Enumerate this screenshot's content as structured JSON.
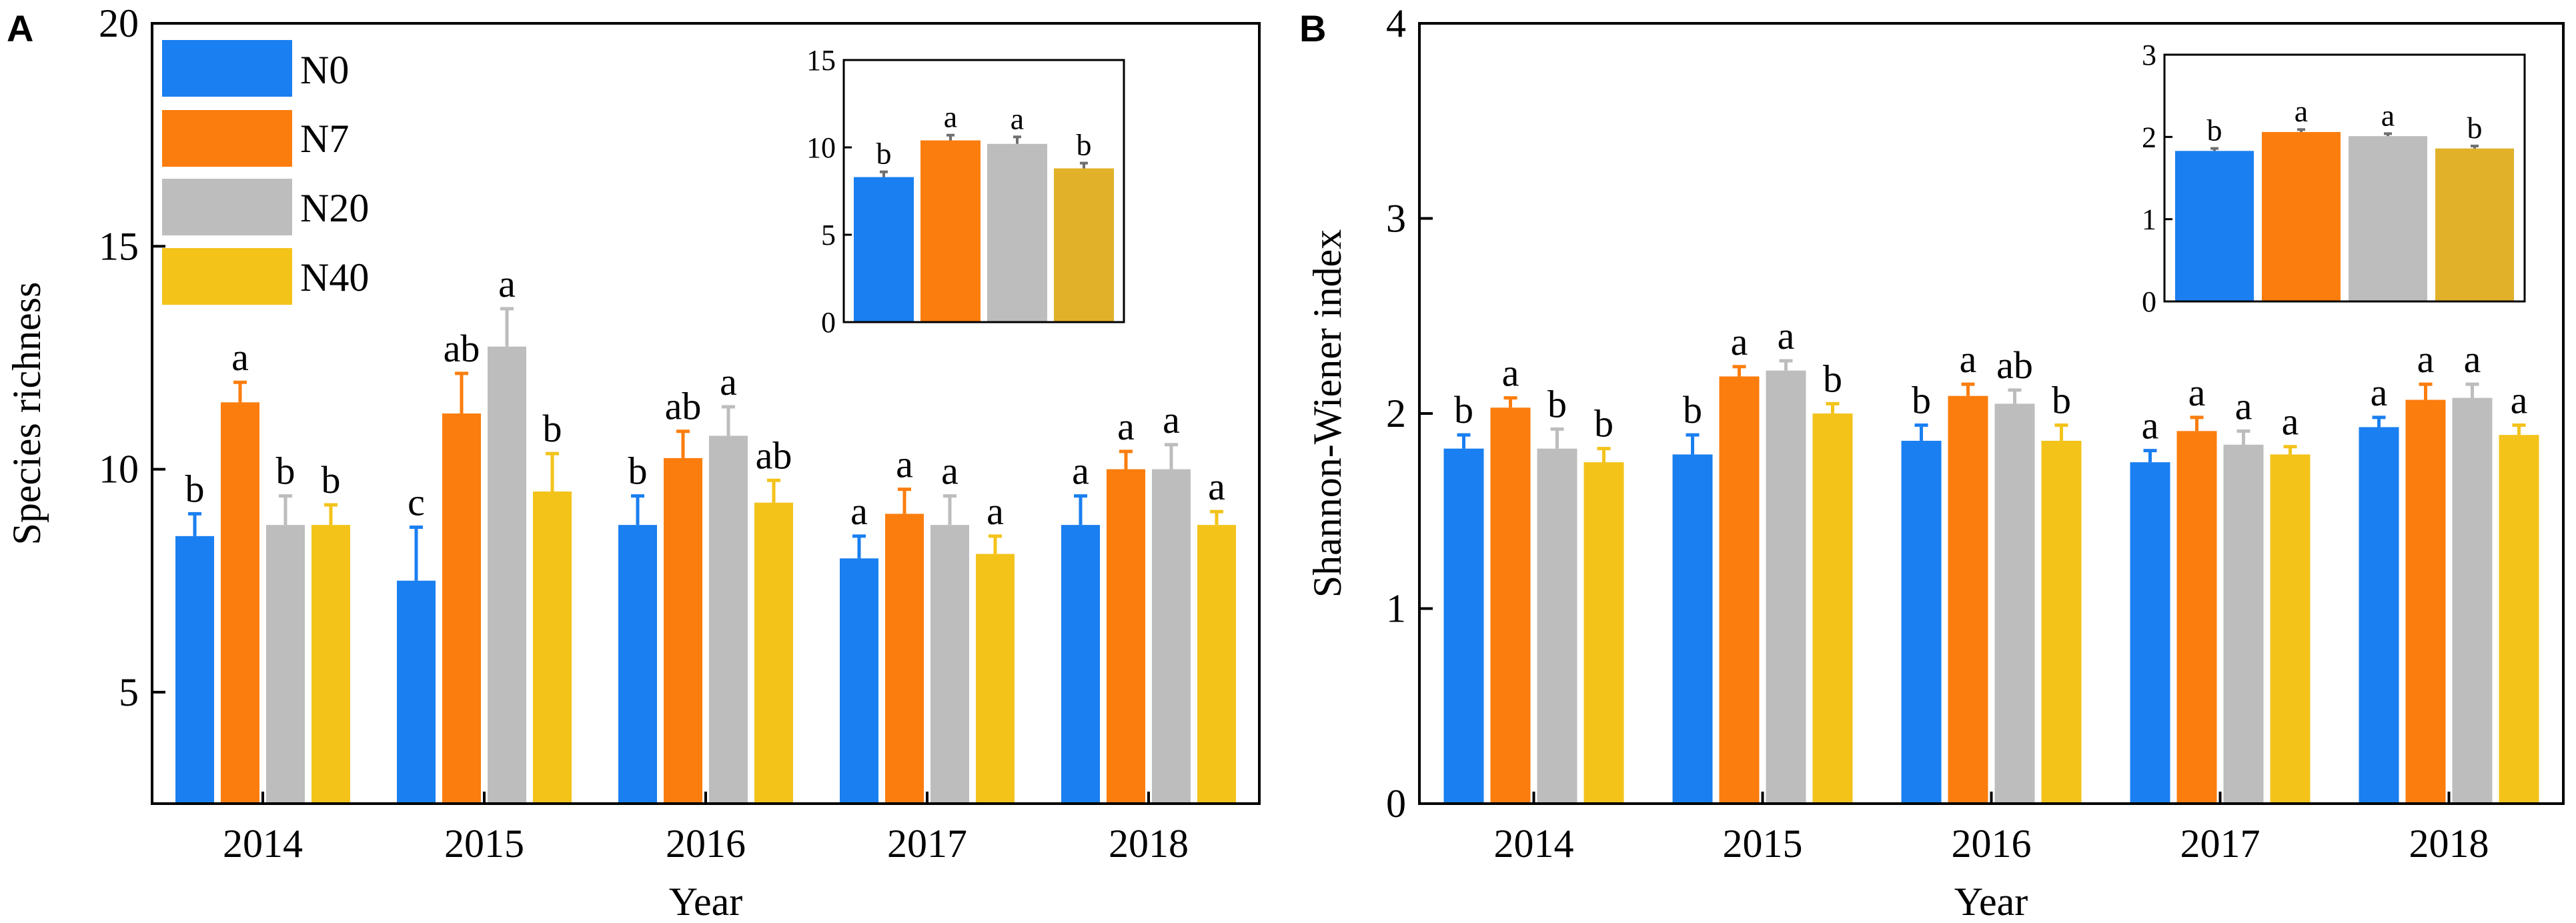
{
  "series_names": [
    "N0",
    "N7",
    "N20",
    "N40"
  ],
  "colors": {
    "N0": "#1a7ff0",
    "N7": "#fb7d0e",
    "N20": "#bdbdbd",
    "N40": "#f3c31a",
    "N40_inset": "#e2b12a",
    "axis": "#000000",
    "error": "#6f6f6f"
  },
  "chart_data": [
    {
      "panel": "A",
      "type": "bar",
      "xlabel": "Year",
      "ylabel": "Species richness",
      "ylim": [
        2.5,
        20
      ],
      "yticks": [
        5,
        10,
        15,
        20
      ],
      "categories": [
        "2014",
        "2015",
        "2016",
        "2017",
        "2018"
      ],
      "legend": {
        "position": "top-left",
        "entries": [
          "N0",
          "N7",
          "N20",
          "N40"
        ]
      },
      "series": [
        {
          "name": "N0",
          "values": [
            8.5,
            7.5,
            8.75,
            8.0,
            8.75
          ],
          "errors": [
            0.5,
            1.2,
            0.65,
            0.5,
            0.65
          ],
          "letters": [
            "b",
            "c",
            "b",
            "a",
            "a"
          ]
        },
        {
          "name": "N7",
          "values": [
            11.5,
            11.25,
            10.25,
            9.0,
            10.0
          ],
          "errors": [
            0.45,
            0.9,
            0.6,
            0.55,
            0.4
          ],
          "letters": [
            "a",
            "ab",
            "ab",
            "a",
            "a"
          ]
        },
        {
          "name": "N20",
          "values": [
            8.75,
            12.75,
            10.75,
            8.75,
            10.0
          ],
          "errors": [
            0.65,
            0.85,
            0.65,
            0.65,
            0.55
          ],
          "letters": [
            "b",
            "a",
            "a",
            "a",
            "a"
          ]
        },
        {
          "name": "N40",
          "values": [
            8.75,
            9.5,
            9.25,
            8.1,
            8.75
          ],
          "errors": [
            0.45,
            0.85,
            0.5,
            0.4,
            0.3
          ],
          "letters": [
            "b",
            "b",
            "ab",
            "a",
            "a"
          ]
        }
      ],
      "inset": {
        "ylim": [
          0,
          15
        ],
        "yticks": [
          0,
          5,
          10,
          15
        ],
        "values": [
          8.3,
          10.4,
          10.2,
          8.8
        ],
        "errors": [
          0.3,
          0.3,
          0.4,
          0.3
        ],
        "letters": [
          "b",
          "a",
          "a",
          "b"
        ]
      }
    },
    {
      "panel": "B",
      "type": "bar",
      "xlabel": "Year",
      "ylabel": "Shannon-Wiener index",
      "ylim": [
        0,
        4
      ],
      "yticks": [
        0,
        1,
        2,
        3,
        4
      ],
      "categories": [
        "2014",
        "2015",
        "2016",
        "2017",
        "2018"
      ],
      "legend": null,
      "series": [
        {
          "name": "N0",
          "values": [
            1.82,
            1.79,
            1.86,
            1.75,
            1.93
          ],
          "errors": [
            0.07,
            0.1,
            0.08,
            0.06,
            0.05
          ],
          "letters": [
            "b",
            "b",
            "b",
            "a",
            "a"
          ]
        },
        {
          "name": "N7",
          "values": [
            2.03,
            2.19,
            2.09,
            1.91,
            2.07
          ],
          "errors": [
            0.05,
            0.05,
            0.06,
            0.07,
            0.08
          ],
          "letters": [
            "a",
            "a",
            "a",
            "a",
            "a"
          ]
        },
        {
          "name": "N20",
          "values": [
            1.82,
            2.22,
            2.05,
            1.84,
            2.08
          ],
          "errors": [
            0.1,
            0.05,
            0.07,
            0.07,
            0.07
          ],
          "letters": [
            "b",
            "a",
            "ab",
            "a",
            "a"
          ]
        },
        {
          "name": "N40",
          "values": [
            1.75,
            2.0,
            1.86,
            1.79,
            1.89
          ],
          "errors": [
            0.07,
            0.05,
            0.08,
            0.04,
            0.05
          ],
          "letters": [
            "b",
            "b",
            "b",
            "a",
            "a"
          ]
        }
      ],
      "inset": {
        "ylim": [
          0,
          3
        ],
        "yticks": [
          0,
          1,
          2,
          3
        ],
        "values": [
          1.83,
          2.06,
          2.01,
          1.86
        ],
        "errors": [
          0.03,
          0.03,
          0.03,
          0.03
        ],
        "letters": [
          "b",
          "a",
          "a",
          "b"
        ]
      }
    }
  ],
  "panel_labels": [
    "A",
    "B"
  ]
}
